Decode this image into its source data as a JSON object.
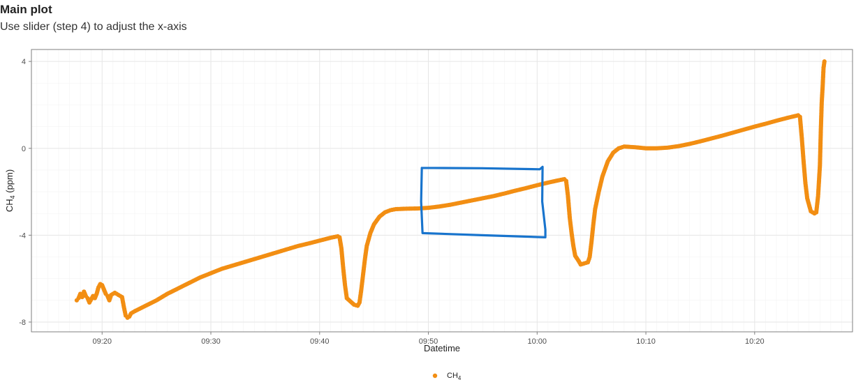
{
  "header": {
    "title": "Main plot",
    "subtitle": "Use slider (step 4) to adjust the x-axis"
  },
  "chart_data": {
    "type": "scatter",
    "xlabel": "Datetime",
    "ylabel_main": "CH",
    "ylabel_sub": "4",
    "ylabel_unit": " (ppm)",
    "xlim": [
      "09:13:30",
      "10:29:00"
    ],
    "ylim": [
      -8.45,
      4.55
    ],
    "x_ticks": [
      "09:20",
      "09:30",
      "09:40",
      "09:50",
      "10:00",
      "10:10",
      "10:20"
    ],
    "y_ticks": [
      4,
      0,
      -4,
      -8
    ],
    "grid": true,
    "legend_position": "bottom",
    "series": [
      {
        "name_main": "CH",
        "name_sub": "4",
        "color": "#F28E13",
        "points": [
          [
            "09:17:40",
            -7.0
          ],
          [
            "09:17:50",
            -6.9
          ],
          [
            "09:18:00",
            -6.7
          ],
          [
            "09:18:10",
            -6.85
          ],
          [
            "09:18:20",
            -6.6
          ],
          [
            "09:18:30",
            -6.8
          ],
          [
            "09:18:40",
            -6.9
          ],
          [
            "09:18:50",
            -7.1
          ],
          [
            "09:19:00",
            -6.95
          ],
          [
            "09:19:10",
            -6.8
          ],
          [
            "09:19:20",
            -6.9
          ],
          [
            "09:19:30",
            -6.7
          ],
          [
            "09:19:40",
            -6.4
          ],
          [
            "09:19:50",
            -6.25
          ],
          [
            "09:20:00",
            -6.3
          ],
          [
            "09:20:10",
            -6.5
          ],
          [
            "09:20:20",
            -6.7
          ],
          [
            "09:20:30",
            -6.8
          ],
          [
            "09:20:40",
            -7.0
          ],
          [
            "09:20:50",
            -6.75
          ],
          [
            "09:21:00",
            -6.7
          ],
          [
            "09:21:10",
            -6.65
          ],
          [
            "09:21:20",
            -6.7
          ],
          [
            "09:21:30",
            -6.75
          ],
          [
            "09:21:40",
            -6.8
          ],
          [
            "09:21:50",
            -6.85
          ],
          [
            "09:22:00",
            -7.3
          ],
          [
            "09:22:10",
            -7.7
          ],
          [
            "09:22:20",
            -7.8
          ],
          [
            "09:22:30",
            -7.75
          ],
          [
            "09:22:40",
            -7.6
          ],
          [
            "09:23:00",
            -7.5
          ],
          [
            "09:24:00",
            -7.25
          ],
          [
            "09:25:00",
            -7.0
          ],
          [
            "09:26:00",
            -6.7
          ],
          [
            "09:27:00",
            -6.45
          ],
          [
            "09:28:00",
            -6.2
          ],
          [
            "09:29:00",
            -5.95
          ],
          [
            "09:30:00",
            -5.75
          ],
          [
            "09:31:00",
            -5.55
          ],
          [
            "09:32:00",
            -5.4
          ],
          [
            "09:33:00",
            -5.25
          ],
          [
            "09:34:00",
            -5.1
          ],
          [
            "09:35:00",
            -4.95
          ],
          [
            "09:36:00",
            -4.8
          ],
          [
            "09:37:00",
            -4.65
          ],
          [
            "09:38:00",
            -4.5
          ],
          [
            "09:39:00",
            -4.38
          ],
          [
            "09:40:00",
            -4.25
          ],
          [
            "09:41:00",
            -4.12
          ],
          [
            "09:41:40",
            -4.05
          ],
          [
            "09:41:50",
            -4.1
          ],
          [
            "09:42:00",
            -4.6
          ],
          [
            "09:42:10",
            -5.5
          ],
          [
            "09:42:20",
            -6.3
          ],
          [
            "09:42:30",
            -6.9
          ],
          [
            "09:42:50",
            -7.05
          ],
          [
            "09:43:10",
            -7.2
          ],
          [
            "09:43:30",
            -7.25
          ],
          [
            "09:43:40",
            -7.1
          ],
          [
            "09:43:50",
            -6.5
          ],
          [
            "09:44:00",
            -5.8
          ],
          [
            "09:44:10",
            -5.1
          ],
          [
            "09:44:20",
            -4.5
          ],
          [
            "09:44:40",
            -3.9
          ],
          [
            "09:45:00",
            -3.5
          ],
          [
            "09:45:30",
            -3.15
          ],
          [
            "09:46:00",
            -2.95
          ],
          [
            "09:46:30",
            -2.85
          ],
          [
            "09:47:00",
            -2.8
          ],
          [
            "09:48:00",
            -2.78
          ],
          [
            "09:49:00",
            -2.77
          ],
          [
            "09:50:00",
            -2.74
          ],
          [
            "09:51:00",
            -2.68
          ],
          [
            "09:52:00",
            -2.6
          ],
          [
            "09:53:00",
            -2.5
          ],
          [
            "09:54:00",
            -2.4
          ],
          [
            "09:55:00",
            -2.3
          ],
          [
            "09:56:00",
            -2.2
          ],
          [
            "09:57:00",
            -2.08
          ],
          [
            "09:58:00",
            -1.95
          ],
          [
            "09:59:00",
            -1.83
          ],
          [
            "10:00:00",
            -1.7
          ],
          [
            "10:01:00",
            -1.58
          ],
          [
            "10:02:00",
            -1.47
          ],
          [
            "10:02:30",
            -1.42
          ],
          [
            "10:02:40",
            -1.5
          ],
          [
            "10:02:50",
            -2.2
          ],
          [
            "10:03:00",
            -3.2
          ],
          [
            "10:03:10",
            -3.9
          ],
          [
            "10:03:20",
            -4.5
          ],
          [
            "10:03:30",
            -4.95
          ],
          [
            "10:03:50",
            -5.2
          ],
          [
            "10:04:00",
            -5.35
          ],
          [
            "10:04:20",
            -5.3
          ],
          [
            "10:04:40",
            -5.25
          ],
          [
            "10:04:50",
            -5.0
          ],
          [
            "10:05:00",
            -4.3
          ],
          [
            "10:05:10",
            -3.5
          ],
          [
            "10:05:20",
            -2.8
          ],
          [
            "10:05:40",
            -2.0
          ],
          [
            "10:06:00",
            -1.3
          ],
          [
            "10:06:30",
            -0.6
          ],
          [
            "10:07:00",
            -0.2
          ],
          [
            "10:07:30",
            0.0
          ],
          [
            "10:08:00",
            0.08
          ],
          [
            "10:09:00",
            0.05
          ],
          [
            "10:10:00",
            0.0
          ],
          [
            "10:11:00",
            0.0
          ],
          [
            "10:12:00",
            0.03
          ],
          [
            "10:13:00",
            0.1
          ],
          [
            "10:14:00",
            0.2
          ],
          [
            "10:15:00",
            0.32
          ],
          [
            "10:16:00",
            0.45
          ],
          [
            "10:17:00",
            0.58
          ],
          [
            "10:18:00",
            0.72
          ],
          [
            "10:19:00",
            0.86
          ],
          [
            "10:20:00",
            1.0
          ],
          [
            "10:21:00",
            1.13
          ],
          [
            "10:22:00",
            1.27
          ],
          [
            "10:23:00",
            1.4
          ],
          [
            "10:24:00",
            1.52
          ],
          [
            "10:24:10",
            1.45
          ],
          [
            "10:24:20",
            0.5
          ],
          [
            "10:24:30",
            -0.6
          ],
          [
            "10:24:40",
            -1.6
          ],
          [
            "10:24:50",
            -2.3
          ],
          [
            "10:25:00",
            -2.6
          ],
          [
            "10:25:10",
            -2.9
          ],
          [
            "10:25:30",
            -3.0
          ],
          [
            "10:25:40",
            -2.95
          ],
          [
            "10:25:50",
            -2.2
          ],
          [
            "10:26:00",
            -0.8
          ],
          [
            "10:26:05",
            0.8
          ],
          [
            "10:26:10",
            2.1
          ],
          [
            "10:26:15",
            2.8
          ],
          [
            "10:26:20",
            3.7
          ],
          [
            "10:26:25",
            4.0
          ]
        ]
      }
    ],
    "annotation": {
      "type": "hand-drawn-rectangle",
      "color": "#1874CD",
      "x_range": [
        "09:49:20",
        "10:00:30"
      ],
      "y_range": [
        -4.0,
        -0.9
      ]
    }
  }
}
